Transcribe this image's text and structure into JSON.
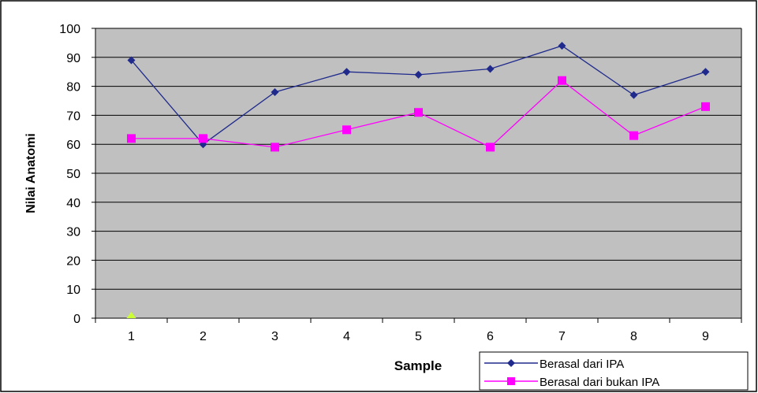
{
  "chart_data": {
    "type": "line",
    "xlabel": "Sample",
    "ylabel": "Nilai Anatomi",
    "ylim": [
      0,
      100
    ],
    "yticks": [
      0,
      10,
      20,
      30,
      40,
      50,
      60,
      70,
      80,
      90,
      100
    ],
    "categories": [
      "1",
      "2",
      "3",
      "4",
      "5",
      "6",
      "7",
      "8",
      "9"
    ],
    "grid": "horizontal",
    "legend_position": "bottom-right",
    "series": [
      {
        "name": "Berasal dari IPA",
        "color": "#1F2A8C",
        "marker": "diamond",
        "values": [
          89,
          60,
          78,
          85,
          84,
          86,
          94,
          77,
          85
        ]
      },
      {
        "name": "Berasal dari bukan IPA",
        "color": "#FF00FF",
        "marker": "square",
        "values": [
          62,
          62,
          59,
          65,
          71,
          59,
          82,
          63,
          73
        ]
      }
    ],
    "extra_markers": [
      {
        "category": "1",
        "value": 0,
        "marker": "triangle",
        "color": "#CCFF33"
      }
    ]
  },
  "style": {
    "plot_background": "#C0C0C0",
    "grid_color": "#000000",
    "frame_color": "#000000"
  }
}
